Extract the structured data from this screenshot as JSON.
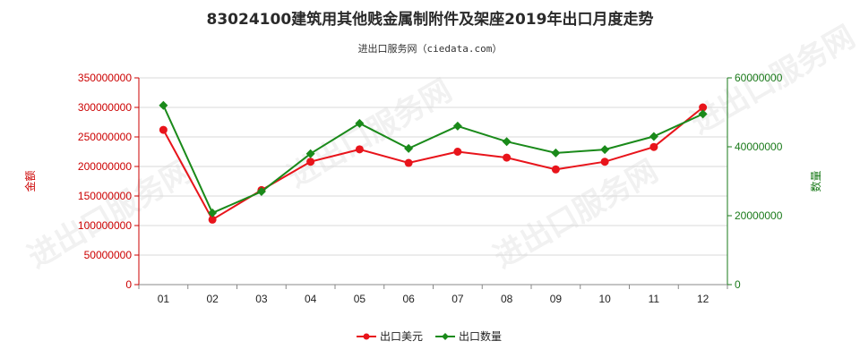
{
  "chart_data": {
    "type": "line",
    "title": "83024100建筑用其他贱金属制附件及架座2019年出口月度走势",
    "subtitle": "进出口服务网（ciedata.com）",
    "categories": [
      "01",
      "02",
      "03",
      "04",
      "05",
      "06",
      "07",
      "08",
      "09",
      "10",
      "11",
      "12"
    ],
    "ylabel_left": "金额",
    "ylabel_right": "数量",
    "ylim_left": [
      0,
      350000000
    ],
    "ylim_right": [
      0,
      60000000
    ],
    "yticks_left": [
      "0",
      "50000000",
      "100000000",
      "150000000",
      "200000000",
      "250000000",
      "300000000",
      "350000000"
    ],
    "yticks_right": [
      "0",
      "20000000",
      "40000000",
      "60000000"
    ],
    "grid": true,
    "legend_position": "bottom",
    "series": [
      {
        "name": "出口美元",
        "axis": "left",
        "color": "#e8141b",
        "values": [
          262000000,
          110000000,
          160000000,
          208000000,
          229000000,
          206000000,
          225000000,
          215000000,
          195000000,
          208000000,
          233000000,
          300000000
        ]
      },
      {
        "name": "出口数量",
        "axis": "right",
        "color": "#1a8a1a",
        "values": [
          52000000,
          20800000,
          27000000,
          38000000,
          46800000,
          39500000,
          46000000,
          41500000,
          38200000,
          39200000,
          43000000,
          49500000
        ]
      }
    ]
  },
  "watermark": "进出口服务网"
}
